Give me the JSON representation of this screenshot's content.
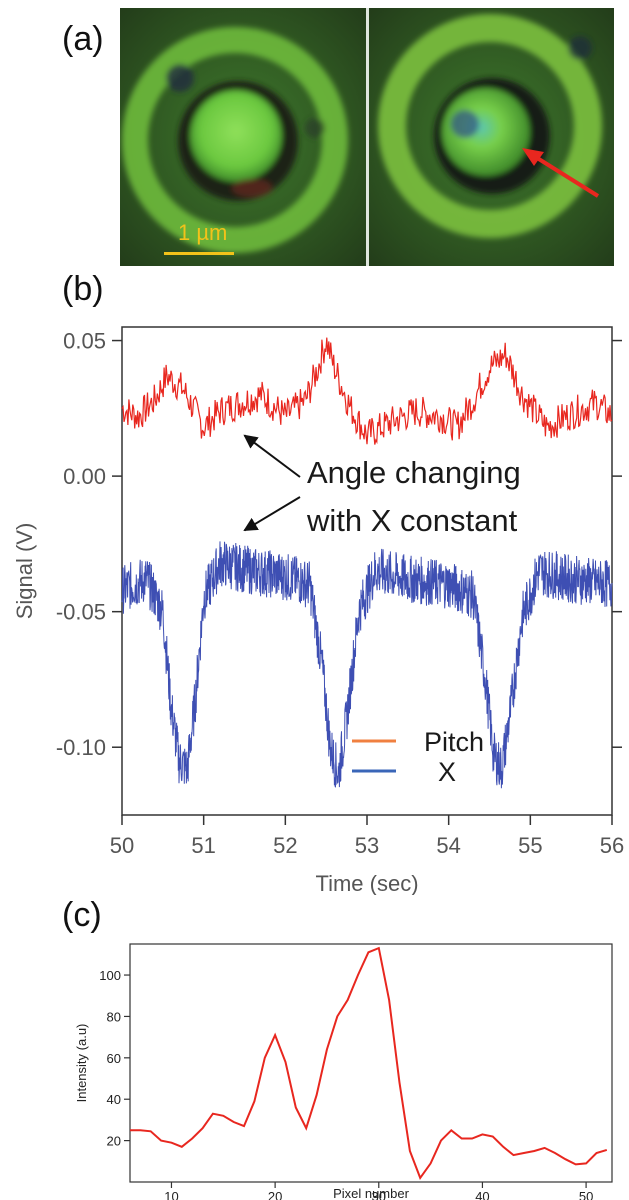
{
  "panels": {
    "a": "(a)",
    "b": "(b)",
    "c": "(c)"
  },
  "micrograph": {
    "scalebar_label": "1 µm",
    "scalebar_color": "#f2c21a",
    "arrow_color": "#e8271f"
  },
  "chart_data": [
    {
      "type": "line",
      "xlabel": "Time (sec)",
      "ylabel": "Signal (V)",
      "xlim": [
        50,
        56
      ],
      "ylim": [
        -0.125,
        0.055
      ],
      "xticks": [
        50,
        51,
        52,
        53,
        54,
        55,
        56
      ],
      "yticks": [
        0.05,
        0.0,
        -0.05,
        -0.1
      ],
      "ytick_labels": [
        "0.05",
        "0.00",
        "-0.05",
        "-0.10"
      ],
      "grid": false,
      "legend": "bottom-right",
      "annotation": {
        "lines": [
          "Angle changing",
          "with X constant"
        ],
        "targets": [
          [
            51.5,
            0.015
          ],
          [
            51.5,
            -0.02
          ]
        ]
      },
      "series": [
        {
          "name": "Pitch",
          "color": "#e8271f",
          "legend_color": "#f08040",
          "x": [
            50.0,
            50.2,
            50.4,
            50.55,
            50.75,
            51.0,
            51.2,
            51.45,
            51.7,
            52.0,
            52.25,
            52.4,
            52.5,
            52.6,
            52.8,
            53.0,
            53.3,
            53.6,
            53.9,
            54.1,
            54.3,
            54.5,
            54.7,
            54.9,
            55.2,
            55.5,
            55.8,
            56.0
          ],
          "values": [
            0.025,
            0.022,
            0.028,
            0.037,
            0.032,
            0.018,
            0.024,
            0.027,
            0.03,
            0.022,
            0.028,
            0.04,
            0.05,
            0.04,
            0.025,
            0.015,
            0.02,
            0.024,
            0.022,
            0.018,
            0.028,
            0.04,
            0.045,
            0.03,
            0.018,
            0.023,
            0.027,
            0.022
          ]
        },
        {
          "name": "X",
          "color": "#3e4fb3",
          "legend_color": "#3a66b8",
          "x": [
            50.0,
            50.3,
            50.5,
            50.6,
            50.7,
            50.8,
            50.9,
            51.0,
            51.2,
            51.6,
            52.0,
            52.3,
            52.45,
            52.55,
            52.65,
            52.75,
            52.9,
            53.1,
            53.5,
            54.0,
            54.3,
            54.45,
            54.55,
            54.65,
            54.75,
            54.9,
            55.1,
            55.5,
            56.0
          ],
          "values": [
            -0.042,
            -0.038,
            -0.05,
            -0.085,
            -0.105,
            -0.108,
            -0.082,
            -0.045,
            -0.032,
            -0.035,
            -0.037,
            -0.04,
            -0.07,
            -0.1,
            -0.11,
            -0.09,
            -0.05,
            -0.035,
            -0.038,
            -0.04,
            -0.044,
            -0.075,
            -0.103,
            -0.108,
            -0.088,
            -0.052,
            -0.035,
            -0.038,
            -0.04
          ]
        }
      ]
    },
    {
      "type": "line",
      "xlabel": "Pixel number",
      "ylabel": "Intensity (a.u)",
      "xlim": [
        6,
        52.5
      ],
      "ylim": [
        0,
        115
      ],
      "xticks": [
        10,
        20,
        30,
        40,
        50
      ],
      "yticks": [
        20,
        40,
        60,
        80,
        100
      ],
      "grid": false,
      "series": [
        {
          "name": "",
          "color": "#e8271f",
          "x": [
            6,
            7,
            8,
            9,
            10,
            11,
            12,
            13,
            14,
            15,
            16,
            17,
            18,
            19,
            20,
            21,
            22,
            23,
            24,
            25,
            26,
            27,
            28,
            29,
            30,
            31,
            32,
            33,
            34,
            35,
            36,
            37,
            38,
            39,
            40,
            41,
            42,
            43,
            44,
            45,
            46,
            47,
            48,
            49,
            50,
            51,
            52
          ],
          "values": [
            25,
            25,
            24.5,
            20,
            19,
            17,
            21,
            26,
            33,
            32,
            29,
            27,
            39,
            60,
            71,
            58,
            36,
            26,
            42,
            64,
            80,
            88,
            100,
            111,
            113,
            88,
            48,
            15,
            2,
            9,
            20,
            25,
            21,
            21,
            23,
            22,
            17,
            13,
            14,
            15,
            16.5,
            14,
            11,
            8.5,
            9,
            14,
            15.5
          ]
        }
      ]
    }
  ]
}
